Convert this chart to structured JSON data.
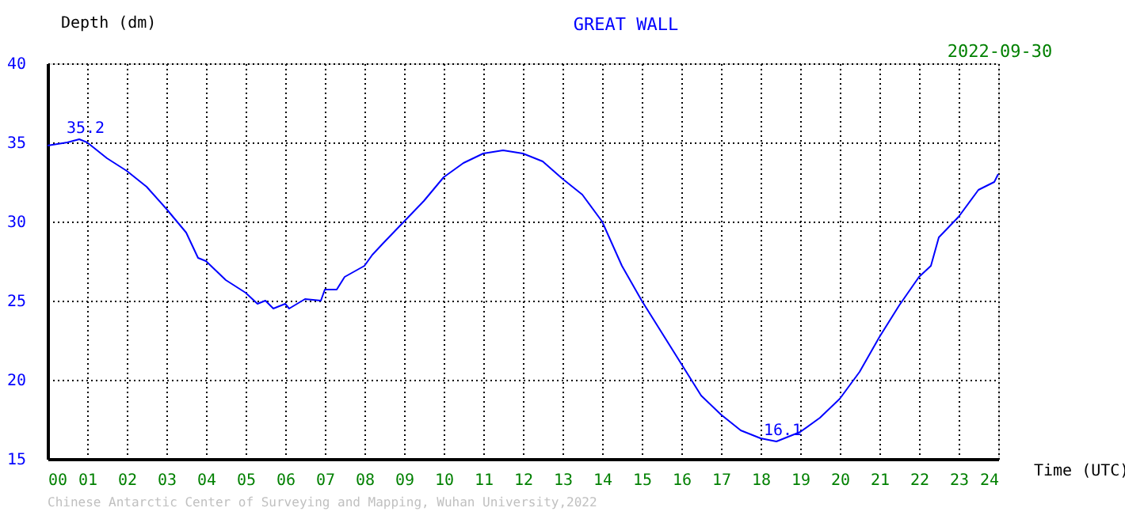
{
  "chart_data": {
    "type": "line",
    "title": "GREAT WALL",
    "xlabel": "Time (UTC)",
    "ylabel": "Depth (dm)",
    "xlim": [
      0,
      24
    ],
    "ylim": [
      15,
      40
    ],
    "xticks": [
      {
        "value": 0,
        "label": "00"
      },
      {
        "value": 1,
        "label": "01"
      },
      {
        "value": 2,
        "label": "02"
      },
      {
        "value": 3,
        "label": "03"
      },
      {
        "value": 4,
        "label": "04"
      },
      {
        "value": 5,
        "label": "05"
      },
      {
        "value": 6,
        "label": "06"
      },
      {
        "value": 7,
        "label": "07"
      },
      {
        "value": 8,
        "label": "08"
      },
      {
        "value": 9,
        "label": "09"
      },
      10,
      11,
      12,
      13,
      14,
      15,
      16,
      17,
      18,
      19,
      20,
      21,
      22,
      23,
      24
    ],
    "yticks": [
      15,
      20,
      25,
      30,
      35,
      40
    ],
    "grid": true,
    "line_style": "solid",
    "series": [
      {
        "color": "#0000ff",
        "x": [
          0,
          0.5,
          0.8,
          1.0,
          1.5,
          2,
          2.5,
          3,
          3.5,
          3.8,
          4,
          4.5,
          5,
          5.3,
          5.5,
          5.7,
          6,
          6.1,
          6.5,
          6.9,
          7,
          7.3,
          7.5,
          8,
          8.2,
          8.5,
          9,
          9.5,
          10,
          10.5,
          11,
          11.5,
          12,
          12.5,
          13,
          13.5,
          14,
          14.5,
          15,
          15.5,
          16,
          16.5,
          17,
          17.5,
          18,
          18.4,
          19,
          19.5,
          20,
          20.5,
          21,
          21.5,
          22,
          22.3,
          22.5,
          23,
          23.5,
          23.9,
          24
        ],
        "values": [
          34.8,
          35.0,
          35.2,
          35.0,
          34.0,
          33.2,
          32.2,
          30.8,
          29.3,
          27.7,
          27.5,
          26.3,
          25.5,
          24.8,
          25.0,
          24.5,
          24.8,
          24.5,
          25.1,
          25.0,
          25.7,
          25.7,
          26.5,
          27.2,
          27.9,
          28.7,
          30.0,
          31.3,
          32.8,
          33.7,
          34.3,
          34.5,
          34.3,
          33.8,
          32.7,
          31.7,
          30.0,
          27.2,
          25.0,
          23.0,
          21.0,
          19.0,
          17.8,
          16.8,
          16.3,
          16.1,
          16.7,
          17.6,
          18.8,
          20.5,
          22.7,
          24.7,
          26.5,
          27.2,
          29.0,
          30.3,
          32.0,
          32.5,
          33.0
        ]
      }
    ],
    "annotations": [
      {
        "text": "35.2",
        "x": 0.8,
        "y": 35.2
      },
      {
        "text": "16.1",
        "x": 18.4,
        "y": 16.1
      },
      "2022-09-30",
      "Chinese Antarctic Center of Surveying and Mapping, Wuhan University,2022"
    ]
  }
}
